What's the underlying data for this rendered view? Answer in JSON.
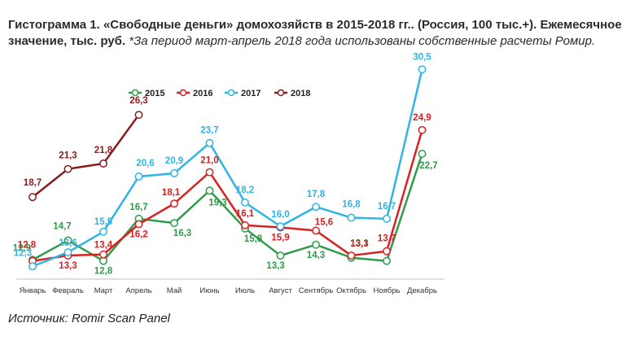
{
  "title_main": "Гистограмма 1. «Свободные деньги» домохозяйств в 2015-2018 гг.. (Россия, 100 тыс.+). Ежемесячное значение, тыс. руб.",
  "title_note": "*За период март-апрель 2018 года использованы собственные расчеты Ромир.",
  "source": "Источник: Romir Scan Panel",
  "colors": {
    "2015": "#2e9c48",
    "2016": "#d92121",
    "2017": "#2fb4e6",
    "2018": "#8b1c1c"
  },
  "chart_data": {
    "type": "line",
    "categories": [
      "Январь",
      "Февраль",
      "Март",
      "Апрель",
      "Май",
      "Июнь",
      "Июль",
      "Август",
      "Сентябрь",
      "Октябрь",
      "Ноябрь",
      "Декабрь"
    ],
    "series": [
      {
        "name": "2015",
        "values": [
          12.9,
          14.7,
          12.8,
          16.7,
          16.3,
          19.3,
          15.8,
          13.3,
          14.3,
          13.1,
          12.8,
          22.7
        ],
        "labels": [
          "12,9",
          "14,7",
          "12,8",
          "16,7",
          "16,3",
          "19,3",
          "15,8",
          "13,3",
          "14,3",
          "13,1",
          "",
          "22,7"
        ]
      },
      {
        "name": "2016",
        "values": [
          12.8,
          13.3,
          13.4,
          16.2,
          18.1,
          21.0,
          16.1,
          15.9,
          15.6,
          13.3,
          13.7,
          24.9
        ],
        "labels": [
          "12,8",
          "13,3",
          "13,4",
          "16,2",
          "18,1",
          "21,0",
          "16,1",
          "15,9",
          "15,6",
          "13,3",
          "13,7",
          "24,9"
        ]
      },
      {
        "name": "2017",
        "values": [
          12.3,
          13.6,
          15.5,
          20.6,
          20.9,
          23.7,
          18.2,
          16.0,
          17.8,
          16.8,
          16.7,
          30.5
        ],
        "labels": [
          "12,3",
          "13,6",
          "15,5",
          "20,6",
          "20,9",
          "23,7",
          "18,2",
          "16,0",
          "17,8",
          "16,8",
          "16,7",
          "30,5"
        ]
      },
      {
        "name": "2018",
        "values": [
          18.7,
          21.3,
          21.8,
          26.3,
          null,
          null,
          null,
          null,
          null,
          null,
          null,
          null
        ],
        "labels": [
          "18,7",
          "21,3",
          "21,8",
          "26,3",
          "",
          "",
          "",
          "",
          "",
          "",
          "",
          ""
        ]
      }
    ],
    "legend_position": "top-left"
  }
}
